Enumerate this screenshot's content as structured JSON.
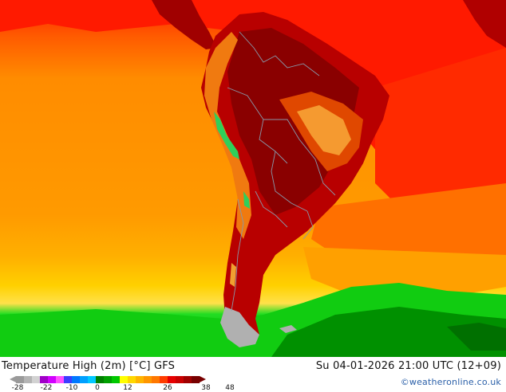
{
  "map": {
    "colors": {
      "ocean_warm": "#ff8c00",
      "ocean_hot": "#ff1a00",
      "ocean_mid": "#ffaa00",
      "ocean_cool": "#ffd000",
      "cold_yellow": "#ffe14a",
      "green_bright": "#11dd11",
      "green_dark": "#008800",
      "land_hot": "#b80000",
      "land_very_hot": "#8a0000",
      "land_warm": "#e04800",
      "land_orange": "#f59a30",
      "mountain_green": "#2fcf5a",
      "ice": "#b0b0b0",
      "borders": "#8899aa"
    }
  },
  "footer": {
    "title": "Temperature High (2m) [°C] GFS",
    "valid_time": "Su 04-01-2026 21:00 UTC (12+09)",
    "credit": "©weatheronline.co.uk"
  },
  "legend": {
    "swatches": [
      "#9a9a9a",
      "#b4b4b4",
      "#d2d2d2",
      "#a000c8",
      "#d200ff",
      "#ff50ff",
      "#3c3cff",
      "#0078ff",
      "#00a0ff",
      "#00c8ff",
      "#008000",
      "#00a000",
      "#00c800",
      "#ffff00",
      "#ffd700",
      "#ffb400",
      "#ff9600",
      "#ff7800",
      "#ff3c00",
      "#e60000",
      "#c80000",
      "#a00000",
      "#780000"
    ],
    "ticks": [
      "-28",
      "-22",
      "-10",
      "0",
      "12",
      "26",
      "38",
      "48"
    ]
  }
}
